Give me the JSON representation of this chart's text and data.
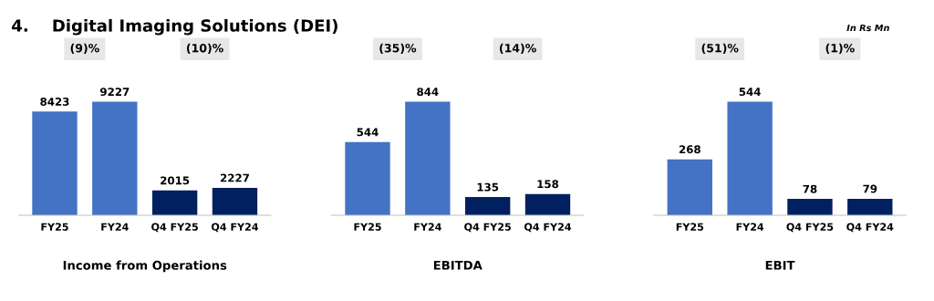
{
  "chart_data": [
    {
      "type": "bar",
      "title": "4.    Digital Imaging Solutions (DEI)",
      "xlabel": "Income from Operations",
      "categories": [
        "FY25",
        "FY24",
        "Q4 FY25",
        "Q4 FY24"
      ],
      "values": [
        8423,
        9227,
        2015,
        2227
      ],
      "colors": [
        "#4472c4",
        "#4472c4",
        "#002060",
        "#002060"
      ],
      "data_labels": true,
      "annotations": [
        "(9)%",
        "(10)%"
      ]
    },
    {
      "type": "bar",
      "xlabel": "EBITDA",
      "categories": [
        "FY25",
        "FY24",
        "Q4 FY25",
        "Q4 FY24"
      ],
      "values": [
        544,
        844,
        135,
        158
      ],
      "colors": [
        "#4472c4",
        "#4472c4",
        "#002060",
        "#002060"
      ],
      "data_labels": true,
      "annotations": [
        "(35)%",
        "(14)%"
      ]
    },
    {
      "type": "bar",
      "xlabel": "EBIT",
      "categories": [
        "FY25",
        "FY24",
        "Q4 FY25",
        "Q4 FY24"
      ],
      "values": [
        268,
        544,
        78,
        79
      ],
      "colors": [
        "#4472c4",
        "#4472c4",
        "#002060",
        "#002060"
      ],
      "data_labels": true,
      "annotations": [
        "(51)%",
        "(1)%",
        "In Rs Mn"
      ]
    }
  ]
}
